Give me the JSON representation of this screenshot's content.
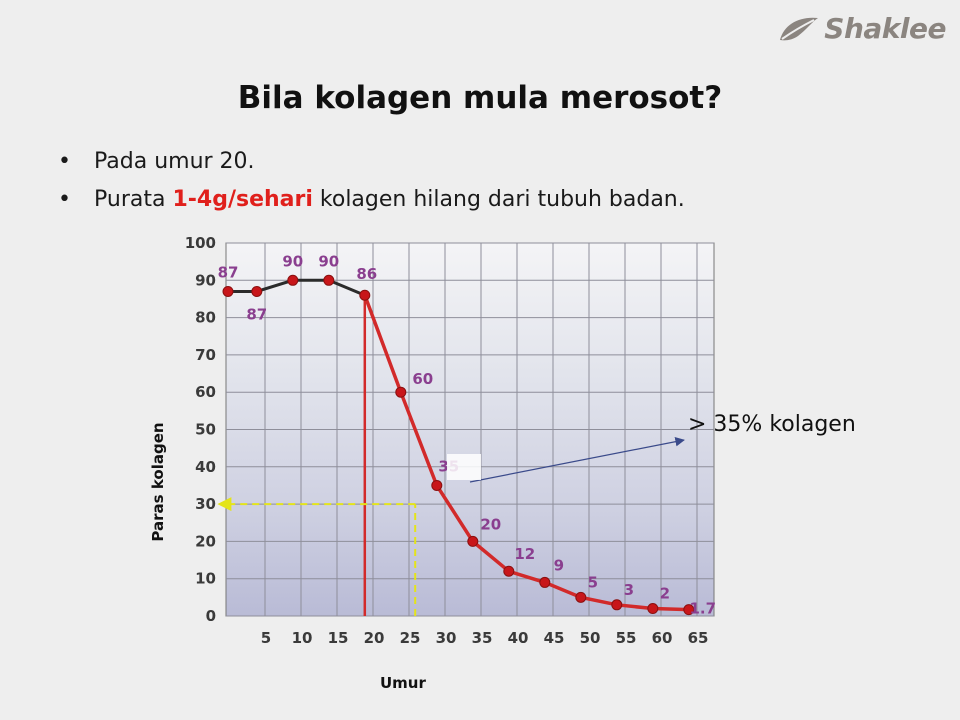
{
  "logo": {
    "text": "Shaklee",
    "icon": "leaf-icon"
  },
  "title": "Bila kolagen mula merosot?",
  "bullets": {
    "b1": "Pada umur 20.",
    "b2_pre": "Purata ",
    "b2_highlight": "1-4g/sehari",
    "b2_post": " kolagen hilang dari tubuh badan."
  },
  "callout": "> 35% kolagen",
  "colors": {
    "line_young": "#2b2b2b",
    "line_decline": "#d22a2a",
    "point": "#c8161a",
    "label": "#8a3f8f",
    "marker": "#e4e41a",
    "arrow": "#3a4a8a",
    "highlight": "#e0201c"
  },
  "chart_data": {
    "type": "line",
    "xlabel": "Umur",
    "ylabel": "Paras kolagen",
    "xlim": [
      0,
      65
    ],
    "ylim": [
      0,
      100
    ],
    "x_ticks": [
      "5",
      "10",
      "15",
      "20",
      "25",
      "30",
      "35",
      "40",
      "45",
      "50",
      "55",
      "60",
      "65"
    ],
    "y_ticks": [
      "0",
      "10",
      "20",
      "30",
      "40",
      "50",
      "60",
      "70",
      "80",
      "90",
      "100"
    ],
    "grid": true,
    "points": [
      {
        "x": 0,
        "y": 87,
        "label": "87"
      },
      {
        "x": 4,
        "y": 87,
        "label": "87"
      },
      {
        "x": 9,
        "y": 90,
        "label": "90"
      },
      {
        "x": 14,
        "y": 90,
        "label": "90"
      },
      {
        "x": 19,
        "y": 86,
        "label": "86"
      },
      {
        "x": 24,
        "y": 60,
        "label": "60"
      },
      {
        "x": 29,
        "y": 35,
        "label": "35"
      },
      {
        "x": 34,
        "y": 20,
        "label": "20"
      },
      {
        "x": 39,
        "y": 12,
        "label": "12"
      },
      {
        "x": 44,
        "y": 9,
        "label": "9"
      },
      {
        "x": 49,
        "y": 5,
        "label": "5"
      },
      {
        "x": 54,
        "y": 3,
        "label": "3"
      },
      {
        "x": 59,
        "y": 2,
        "label": "2"
      },
      {
        "x": 64,
        "y": 1.7,
        "label": "1.7"
      }
    ],
    "annotations": [
      {
        "type": "vertical-line",
        "x": 19,
        "y": 86
      },
      {
        "type": "dashed-guide",
        "x": 26,
        "y": 30
      }
    ]
  }
}
